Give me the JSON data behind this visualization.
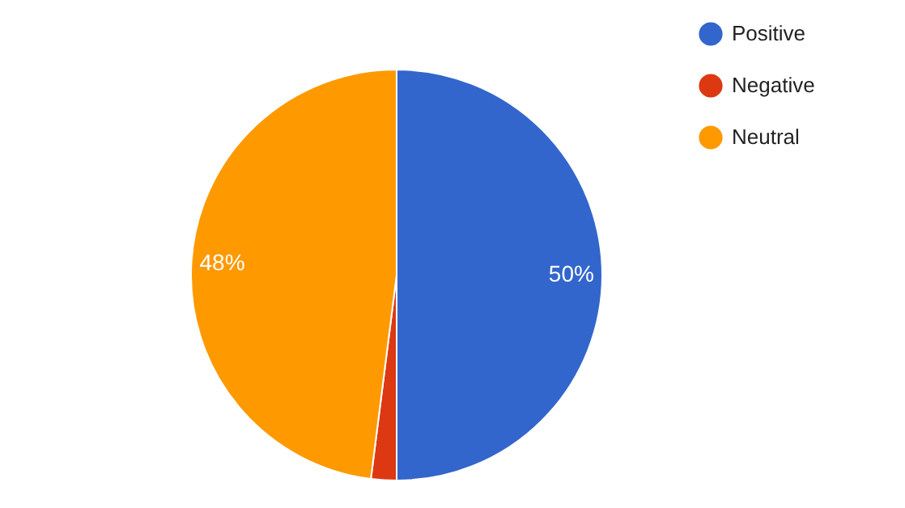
{
  "chart_data": {
    "type": "pie",
    "categories": [
      "Positive",
      "Negative",
      "Neutral"
    ],
    "values": [
      50,
      2,
      48
    ],
    "colors": [
      "#3366cc",
      "#dc3912",
      "#ff9900"
    ],
    "value_labels": [
      "50%",
      null,
      "48%"
    ],
    "legend": "top right"
  }
}
